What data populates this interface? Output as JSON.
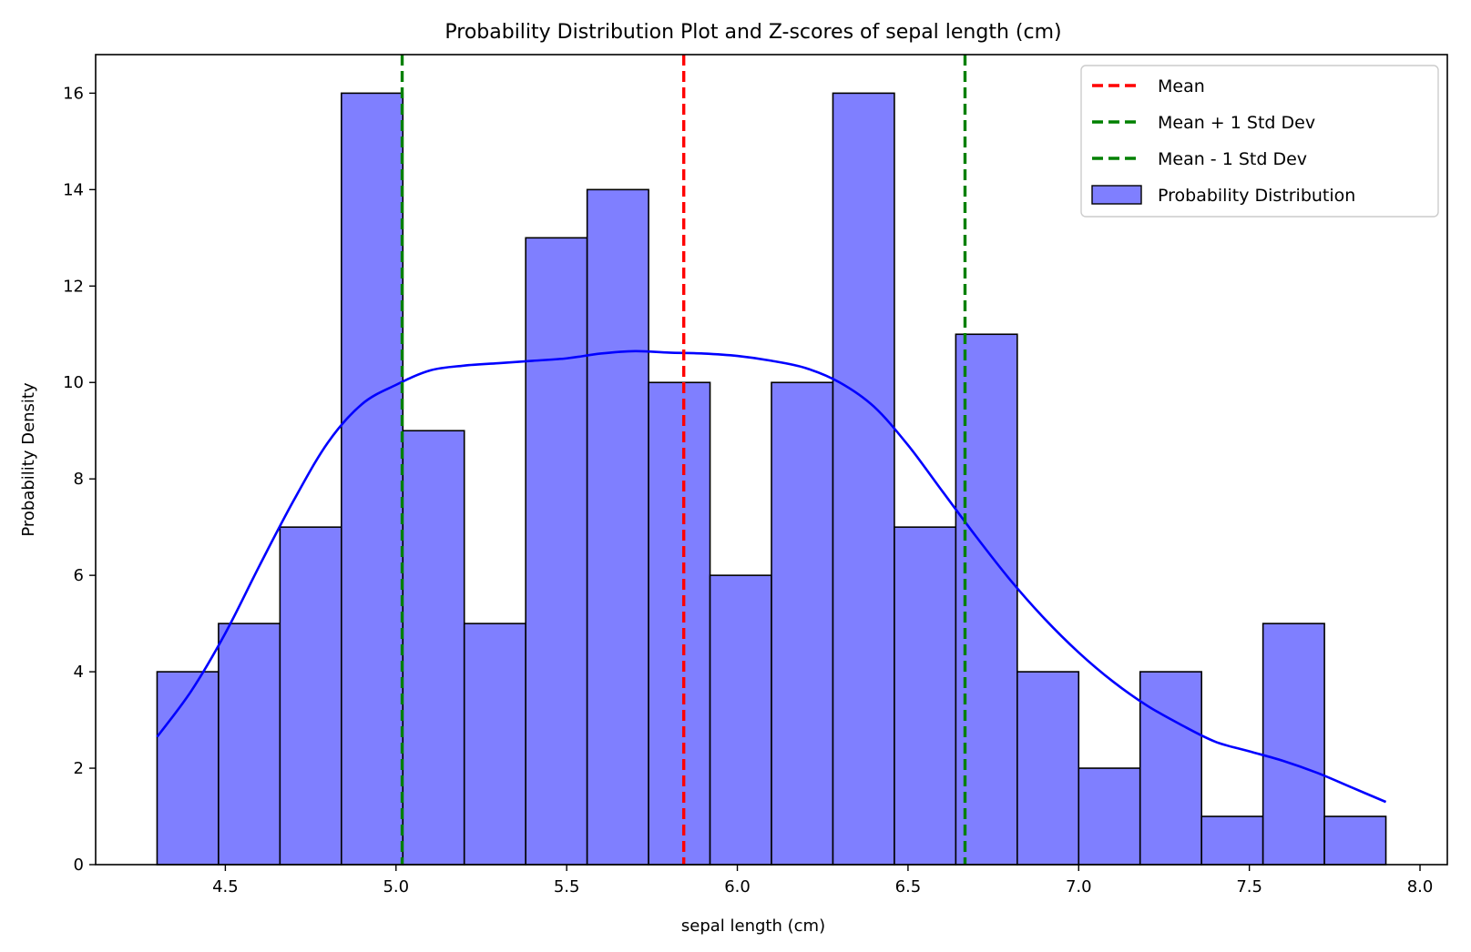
{
  "chart_data": {
    "type": "bar",
    "title": "Probability Distribution Plot and Z-scores of sepal length (cm)",
    "xlabel": "sepal length (cm)",
    "ylabel": "Probability Density",
    "xlim": [
      4.12,
      8.08
    ],
    "ylim": [
      0,
      16.8
    ],
    "x_ticks": [
      "4.5",
      "5.0",
      "5.5",
      "6.0",
      "6.5",
      "7.0",
      "7.5",
      "8.0"
    ],
    "y_ticks": [
      "0",
      "2",
      "4",
      "6",
      "8",
      "10",
      "12",
      "14",
      "16"
    ],
    "bins": {
      "start": 4.3,
      "width": 0.18,
      "values": [
        4,
        5,
        7,
        16,
        9,
        5,
        13,
        14,
        10,
        6,
        10,
        16,
        7,
        11,
        4,
        2,
        4,
        1,
        5,
        1
      ]
    },
    "bar_color": "#7f7fff",
    "kde": {
      "color": "#0000ff",
      "x": [
        4.3,
        4.4,
        4.5,
        4.6,
        4.7,
        4.8,
        4.9,
        5.0,
        5.1,
        5.2,
        5.3,
        5.4,
        5.5,
        5.6,
        5.7,
        5.8,
        5.9,
        6.0,
        6.1,
        6.2,
        6.3,
        6.4,
        6.5,
        6.6,
        6.7,
        6.8,
        6.9,
        7.0,
        7.1,
        7.2,
        7.3,
        7.4,
        7.5,
        7.6,
        7.7,
        7.8,
        7.9
      ],
      "y": [
        2.65,
        3.6,
        4.8,
        6.2,
        7.55,
        8.75,
        9.55,
        9.95,
        10.25,
        10.35,
        10.4,
        10.45,
        10.5,
        10.6,
        10.65,
        10.62,
        10.6,
        10.55,
        10.45,
        10.3,
        10.0,
        9.5,
        8.7,
        7.75,
        6.8,
        5.9,
        5.1,
        4.4,
        3.8,
        3.3,
        2.9,
        2.55,
        2.35,
        2.15,
        1.9,
        1.6,
        1.3
      ]
    },
    "vlines": [
      {
        "label": "Mean",
        "x": 5.843,
        "color": "#ff0000"
      },
      {
        "label": "Mean + 1 Std Dev",
        "x": 6.667,
        "color": "#008000"
      },
      {
        "label": "Mean - 1 Std Dev",
        "x": 5.018,
        "color": "#008000"
      }
    ],
    "legend": {
      "position": "top-right",
      "entries": [
        {
          "label": "Mean",
          "kind": "line",
          "color": "#ff0000"
        },
        {
          "label": "Mean + 1 Std Dev",
          "kind": "line",
          "color": "#008000"
        },
        {
          "label": "Mean - 1 Std Dev",
          "kind": "line",
          "color": "#008000"
        },
        {
          "label": "Probability Distribution",
          "kind": "patch",
          "color": "#7f7fff"
        }
      ]
    }
  }
}
